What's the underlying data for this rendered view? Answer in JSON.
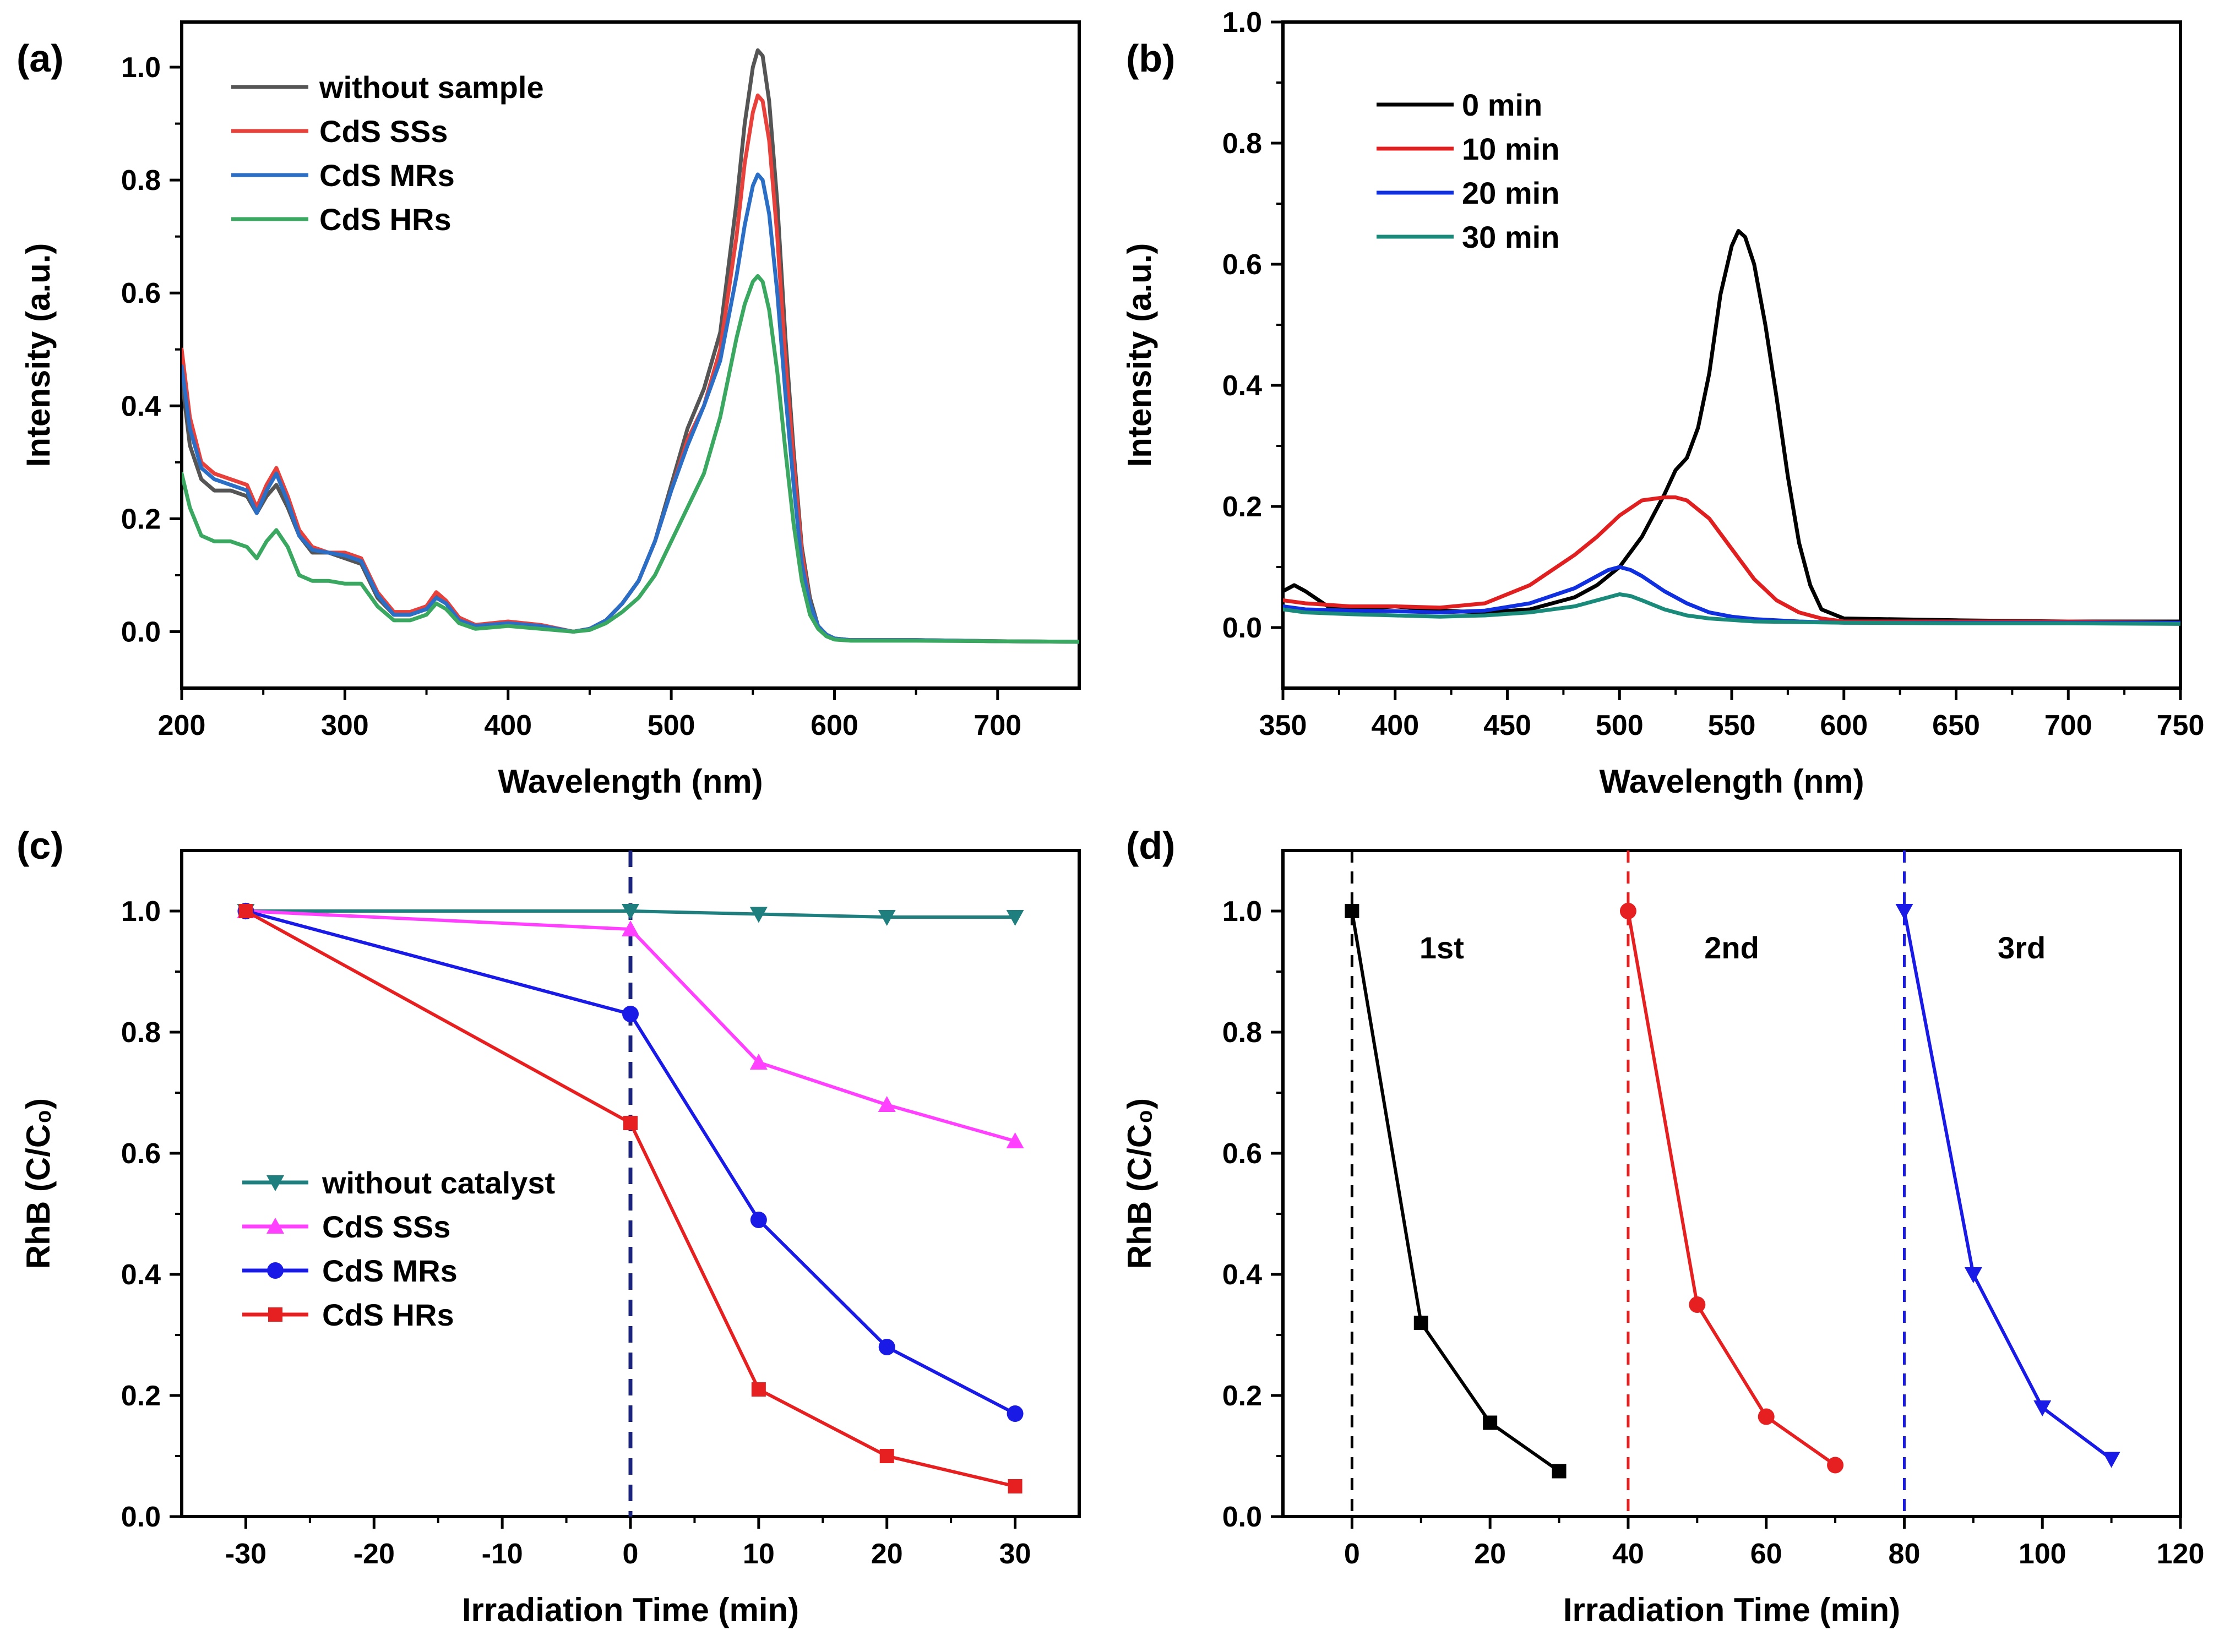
{
  "chart_data": [
    {
      "id": "a",
      "panel_label": "(a)",
      "type": "line",
      "title": "",
      "xlabel": "Wavelength (nm)",
      "ylabel": "Intensity (a.u.)",
      "xlim": [
        200,
        750
      ],
      "ylim": [
        -0.1,
        1.08
      ],
      "xticks": [
        "200",
        "300",
        "400",
        "500",
        "600",
        "700"
      ],
      "xtick_values": [
        200,
        300,
        400,
        500,
        600,
        700
      ],
      "yticks": [
        "0.0",
        "0.2",
        "0.4",
        "0.6",
        "0.8",
        "1.0"
      ],
      "ytick_values": [
        0.0,
        0.2,
        0.4,
        0.6,
        0.8,
        1.0
      ],
      "legend_position": "top-left",
      "series": [
        {
          "name": "without sample",
          "color": "#555555",
          "x": [
            200,
            205,
            212,
            220,
            230,
            240,
            246,
            252,
            258,
            265,
            272,
            280,
            290,
            300,
            310,
            320,
            330,
            340,
            350,
            356,
            362,
            370,
            380,
            400,
            420,
            440,
            450,
            460,
            470,
            480,
            490,
            500,
            510,
            520,
            530,
            540,
            545,
            550,
            553,
            556,
            560,
            565,
            570,
            575,
            580,
            585,
            590,
            595,
            600,
            610,
            650,
            700,
            750
          ],
          "y": [
            0.45,
            0.33,
            0.27,
            0.25,
            0.25,
            0.24,
            0.21,
            0.24,
            0.26,
            0.22,
            0.17,
            0.14,
            0.14,
            0.13,
            0.12,
            0.06,
            0.03,
            0.03,
            0.04,
            0.065,
            0.05,
            0.025,
            0.01,
            0.015,
            0.01,
            0.0,
            0.005,
            0.02,
            0.05,
            0.09,
            0.16,
            0.26,
            0.36,
            0.43,
            0.53,
            0.76,
            0.9,
            1.0,
            1.03,
            1.02,
            0.94,
            0.76,
            0.52,
            0.32,
            0.15,
            0.06,
            0.01,
            -0.005,
            -0.012,
            -0.015,
            -0.015,
            -0.017,
            -0.018
          ]
        },
        {
          "name": "CdS SSs",
          "color": "#e8403a",
          "x": [
            200,
            205,
            212,
            220,
            230,
            240,
            246,
            252,
            258,
            265,
            272,
            280,
            290,
            300,
            310,
            320,
            330,
            340,
            350,
            356,
            362,
            370,
            380,
            400,
            420,
            440,
            450,
            460,
            470,
            480,
            490,
            500,
            510,
            520,
            530,
            540,
            545,
            550,
            553,
            556,
            560,
            565,
            570,
            575,
            580,
            585,
            590,
            595,
            600,
            610,
            650,
            700,
            750
          ],
          "y": [
            0.5,
            0.38,
            0.3,
            0.28,
            0.27,
            0.26,
            0.22,
            0.26,
            0.29,
            0.24,
            0.18,
            0.15,
            0.14,
            0.14,
            0.13,
            0.07,
            0.035,
            0.035,
            0.045,
            0.07,
            0.055,
            0.025,
            0.012,
            0.018,
            0.012,
            0.0,
            0.005,
            0.02,
            0.05,
            0.09,
            0.16,
            0.25,
            0.34,
            0.4,
            0.5,
            0.7,
            0.83,
            0.92,
            0.95,
            0.94,
            0.87,
            0.7,
            0.48,
            0.3,
            0.14,
            0.05,
            0.01,
            -0.005,
            -0.012,
            -0.015,
            -0.015,
            -0.017,
            -0.018
          ]
        },
        {
          "name": "CdS MRs",
          "color": "#2a6ec6",
          "x": [
            200,
            205,
            212,
            220,
            230,
            240,
            246,
            252,
            258,
            265,
            272,
            280,
            290,
            300,
            310,
            320,
            330,
            340,
            350,
            356,
            362,
            370,
            380,
            400,
            420,
            440,
            450,
            460,
            470,
            480,
            490,
            500,
            510,
            520,
            530,
            540,
            545,
            550,
            553,
            556,
            560,
            565,
            570,
            575,
            580,
            585,
            590,
            595,
            600,
            610,
            650,
            700,
            750
          ],
          "y": [
            0.47,
            0.36,
            0.29,
            0.27,
            0.26,
            0.25,
            0.21,
            0.25,
            0.28,
            0.23,
            0.17,
            0.145,
            0.14,
            0.135,
            0.125,
            0.065,
            0.03,
            0.03,
            0.04,
            0.06,
            0.05,
            0.02,
            0.01,
            0.015,
            0.01,
            0.0,
            0.005,
            0.02,
            0.05,
            0.09,
            0.16,
            0.25,
            0.33,
            0.4,
            0.48,
            0.63,
            0.72,
            0.79,
            0.81,
            0.8,
            0.74,
            0.6,
            0.42,
            0.26,
            0.12,
            0.05,
            0.01,
            -0.005,
            -0.012,
            -0.015,
            -0.015,
            -0.017,
            -0.018
          ]
        },
        {
          "name": "CdS HRs",
          "color": "#3aa860",
          "x": [
            200,
            205,
            212,
            220,
            230,
            240,
            246,
            252,
            258,
            265,
            272,
            280,
            290,
            300,
            310,
            320,
            330,
            340,
            350,
            356,
            362,
            370,
            380,
            400,
            420,
            440,
            450,
            460,
            470,
            480,
            490,
            500,
            510,
            520,
            530,
            540,
            545,
            550,
            553,
            556,
            560,
            565,
            570,
            575,
            580,
            585,
            590,
            595,
            600,
            610,
            650,
            700,
            750
          ],
          "y": [
            0.28,
            0.22,
            0.17,
            0.16,
            0.16,
            0.15,
            0.13,
            0.16,
            0.18,
            0.15,
            0.1,
            0.09,
            0.09,
            0.085,
            0.085,
            0.045,
            0.02,
            0.02,
            0.03,
            0.05,
            0.04,
            0.015,
            0.005,
            0.01,
            0.005,
            0.0,
            0.003,
            0.015,
            0.035,
            0.06,
            0.1,
            0.16,
            0.22,
            0.28,
            0.38,
            0.52,
            0.58,
            0.62,
            0.63,
            0.62,
            0.57,
            0.46,
            0.32,
            0.19,
            0.09,
            0.03,
            0.005,
            -0.008,
            -0.014,
            -0.016,
            -0.016,
            -0.017,
            -0.018
          ]
        }
      ]
    },
    {
      "id": "b",
      "panel_label": "(b)",
      "type": "line",
      "title": "",
      "xlabel": "Wavelength (nm)",
      "ylabel": "Intensity (a.u.)",
      "xlim": [
        350,
        750
      ],
      "ylim": [
        -0.1,
        1.0
      ],
      "xticks": [
        "350",
        "400",
        "450",
        "500",
        "550",
        "600",
        "650",
        "700",
        "750"
      ],
      "xtick_values": [
        350,
        400,
        450,
        500,
        550,
        600,
        650,
        700,
        750
      ],
      "yticks": [
        "0.0",
        "0.2",
        "0.4",
        "0.6",
        "0.8",
        "1.0"
      ],
      "ytick_values": [
        0.0,
        0.2,
        0.4,
        0.6,
        0.8,
        1.0
      ],
      "legend_position": "top-left",
      "series": [
        {
          "name": "0 min",
          "color": "#000000",
          "x": [
            350,
            355,
            360,
            370,
            380,
            400,
            420,
            440,
            460,
            480,
            490,
            500,
            510,
            520,
            525,
            530,
            535,
            540,
            545,
            550,
            553,
            556,
            560,
            565,
            570,
            575,
            580,
            585,
            590,
            600,
            650,
            700,
            750
          ],
          "y": [
            0.06,
            0.07,
            0.06,
            0.035,
            0.03,
            0.035,
            0.028,
            0.025,
            0.03,
            0.05,
            0.07,
            0.1,
            0.15,
            0.22,
            0.26,
            0.28,
            0.33,
            0.42,
            0.55,
            0.63,
            0.655,
            0.645,
            0.6,
            0.5,
            0.38,
            0.25,
            0.14,
            0.07,
            0.03,
            0.015,
            0.012,
            0.01,
            0.01
          ]
        },
        {
          "name": "10 min",
          "color": "#e02020",
          "x": [
            350,
            360,
            380,
            400,
            420,
            440,
            460,
            480,
            490,
            500,
            510,
            520,
            525,
            530,
            540,
            550,
            560,
            570,
            580,
            590,
            600,
            650,
            700,
            750
          ],
          "y": [
            0.045,
            0.04,
            0.035,
            0.035,
            0.033,
            0.04,
            0.07,
            0.12,
            0.15,
            0.185,
            0.21,
            0.215,
            0.215,
            0.21,
            0.18,
            0.13,
            0.08,
            0.045,
            0.025,
            0.015,
            0.01,
            0.01,
            0.01,
            0.008
          ]
        },
        {
          "name": "20 min",
          "color": "#1030e0",
          "x": [
            350,
            360,
            380,
            400,
            420,
            440,
            460,
            480,
            490,
            495,
            500,
            505,
            510,
            520,
            530,
            540,
            550,
            560,
            580,
            600,
            650,
            700,
            750
          ],
          "y": [
            0.035,
            0.03,
            0.028,
            0.027,
            0.025,
            0.028,
            0.04,
            0.065,
            0.085,
            0.095,
            0.1,
            0.095,
            0.085,
            0.06,
            0.04,
            0.025,
            0.018,
            0.014,
            0.01,
            0.008,
            0.008,
            0.008,
            0.008
          ]
        },
        {
          "name": "30 min",
          "color": "#1a8a7a",
          "x": [
            350,
            360,
            380,
            400,
            420,
            440,
            460,
            480,
            490,
            500,
            505,
            510,
            520,
            530,
            540,
            560,
            600,
            650,
            700,
            750
          ],
          "y": [
            0.03,
            0.025,
            0.022,
            0.02,
            0.018,
            0.02,
            0.025,
            0.035,
            0.045,
            0.055,
            0.052,
            0.045,
            0.03,
            0.02,
            0.015,
            0.01,
            0.008,
            0.007,
            0.007,
            0.006
          ]
        }
      ]
    },
    {
      "id": "c",
      "panel_label": "(c)",
      "type": "line",
      "title": "",
      "xlabel": "Irradiation Time (min)",
      "ylabel": "RhB (C/C₀)",
      "xlim": [
        -35,
        35
      ],
      "ylim": [
        0.0,
        1.1
      ],
      "xticks": [
        "-30",
        "-20",
        "-10",
        "0",
        "10",
        "20",
        "30"
      ],
      "xtick_values": [
        -30,
        -20,
        -10,
        0,
        10,
        20,
        30
      ],
      "yticks": [
        "0.0",
        "0.2",
        "0.4",
        "0.6",
        "0.8",
        "1.0"
      ],
      "ytick_values": [
        0.0,
        0.2,
        0.4,
        0.6,
        0.8,
        1.0
      ],
      "legend_position": "center-left",
      "vline": {
        "x": 0,
        "color": "#1a237e"
      },
      "series": [
        {
          "name": "without catalyst",
          "color": "#1f7f7f",
          "marker": "triangle-down",
          "x": [
            -30,
            0,
            10,
            20,
            30
          ],
          "y": [
            1.0,
            1.0,
            0.995,
            0.99,
            0.99
          ]
        },
        {
          "name": "CdS SSs",
          "color": "#ff40ff",
          "marker": "triangle-up",
          "x": [
            -30,
            0,
            10,
            20,
            30
          ],
          "y": [
            1.0,
            0.97,
            0.75,
            0.68,
            0.62
          ]
        },
        {
          "name": "CdS MRs",
          "color": "#1a1ae6",
          "marker": "circle",
          "x": [
            -30,
            0,
            10,
            20,
            30
          ],
          "y": [
            1.0,
            0.83,
            0.49,
            0.28,
            0.17
          ]
        },
        {
          "name": "CdS HRs",
          "color": "#e62020",
          "marker": "square",
          "x": [
            -30,
            0,
            10,
            20,
            30
          ],
          "y": [
            1.0,
            0.65,
            0.21,
            0.1,
            0.05
          ]
        }
      ]
    },
    {
      "id": "d",
      "panel_label": "(d)",
      "type": "line",
      "title": "",
      "xlabel": "Irradiation Time (min)",
      "ylabel": "RhB (C/C₀)",
      "xlim": [
        -10,
        120
      ],
      "ylim": [
        0.0,
        1.1
      ],
      "xticks": [
        "0",
        "20",
        "40",
        "60",
        "80",
        "100",
        "120"
      ],
      "xtick_values": [
        0,
        20,
        40,
        60,
        80,
        100,
        120
      ],
      "yticks": [
        "0.0",
        "0.2",
        "0.4",
        "0.6",
        "0.8",
        "1.0"
      ],
      "ytick_values": [
        0.0,
        0.2,
        0.4,
        0.6,
        0.8,
        1.0
      ],
      "annotations": [
        {
          "text": "1st",
          "x": 13,
          "y": 0.94
        },
        {
          "text": "2nd",
          "x": 55,
          "y": 0.94
        },
        {
          "text": "3rd",
          "x": 97,
          "y": 0.94
        }
      ],
      "series": [
        {
          "name": "1st",
          "color": "#000000",
          "marker": "square",
          "vline_x": 0,
          "x": [
            0,
            10,
            20,
            30
          ],
          "y": [
            1.0,
            0.32,
            0.155,
            0.075
          ]
        },
        {
          "name": "2nd",
          "color": "#e62020",
          "marker": "circle",
          "vline_x": 40,
          "x": [
            40,
            50,
            60,
            70
          ],
          "y": [
            1.0,
            0.35,
            0.165,
            0.085
          ]
        },
        {
          "name": "3rd",
          "color": "#1a1ae6",
          "marker": "triangle-down",
          "vline_x": 80,
          "x": [
            80,
            90,
            100,
            110
          ],
          "y": [
            1.0,
            0.4,
            0.18,
            0.095
          ]
        }
      ]
    }
  ]
}
